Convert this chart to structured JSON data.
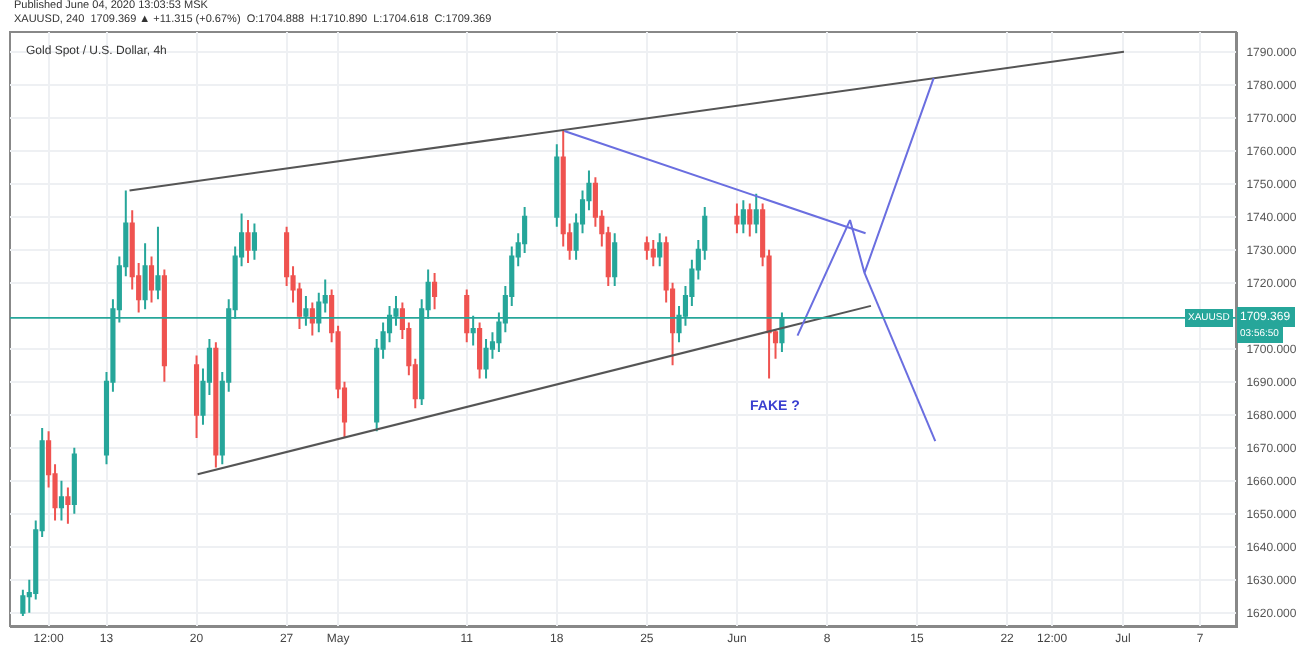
{
  "chart_data": {
    "type": "candlestick",
    "title": "Gold Spot / U.S. Dollar, 4h",
    "annotations": [
      "Published June 04, 2020 13:03:53 MSK",
      "XAUUSD, 240  1709.369 ▲ +11.315 (+0.67%)  O:1704.888  H:1710.890  L:1704.618  C:1709.369",
      "XAUUSD",
      "03:56:50",
      "FAKE ?"
    ],
    "x": [
      "2020-04-06T12:00",
      "2020-04-07T00:00",
      "2020-04-07T12:00",
      "2020-04-08T00:00",
      "2020-04-08T12:00",
      "2020-04-09T00:00",
      "2020-04-09T12:00",
      "2020-04-10T00:00",
      "2020-04-10T12:00",
      "2020-04-13T00:00",
      "2020-04-13T12:00",
      "2020-04-14T00:00",
      "2020-04-14T12:00",
      "2020-04-15T00:00",
      "2020-04-15T12:00",
      "2020-04-16T00:00",
      "2020-04-16T12:00",
      "2020-04-17T00:00",
      "2020-04-17T12:00",
      "2020-04-20T00:00",
      "2020-04-20T12:00",
      "2020-04-21T00:00",
      "2020-04-21T12:00",
      "2020-04-22T00:00",
      "2020-04-22T12:00",
      "2020-04-23T00:00",
      "2020-04-23T12:00",
      "2020-04-24T00:00",
      "2020-04-24T12:00",
      "2020-04-27T00:00",
      "2020-04-27T12:00",
      "2020-04-28T00:00",
      "2020-04-28T12:00",
      "2020-04-29T00:00",
      "2020-04-29T12:00",
      "2020-04-30T00:00",
      "2020-04-30T12:00",
      "2020-05-01T00:00",
      "2020-05-01T12:00",
      "2020-05-04T00:00",
      "2020-05-04T12:00",
      "2020-05-05T00:00",
      "2020-05-05T12:00",
      "2020-05-06T00:00",
      "2020-05-06T12:00",
      "2020-05-07T00:00",
      "2020-05-07T12:00",
      "2020-05-08T00:00",
      "2020-05-08T12:00",
      "2020-05-11T00:00",
      "2020-05-11T12:00",
      "2020-05-12T00:00",
      "2020-05-12T12:00",
      "2020-05-13T00:00",
      "2020-05-13T12:00",
      "2020-05-14T00:00",
      "2020-05-14T12:00",
      "2020-05-15T00:00",
      "2020-05-15T12:00",
      "2020-05-18T00:00",
      "2020-05-18T12:00",
      "2020-05-19T00:00",
      "2020-05-19T12:00",
      "2020-05-20T00:00",
      "2020-05-20T12:00",
      "2020-05-21T00:00",
      "2020-05-21T12:00",
      "2020-05-22T00:00",
      "2020-05-22T12:00",
      "2020-05-25T00:00",
      "2020-05-25T12:00",
      "2020-05-26T00:00",
      "2020-05-26T12:00",
      "2020-05-27T00:00",
      "2020-05-27T12:00",
      "2020-05-28T00:00",
      "2020-05-28T12:00",
      "2020-05-29T00:00",
      "2020-05-29T12:00",
      "2020-06-01T00:00",
      "2020-06-01T12:00",
      "2020-06-02T00:00",
      "2020-06-02T12:00",
      "2020-06-03T00:00",
      "2020-06-03T12:00",
      "2020-06-04T00:00",
      "2020-06-04T12:00"
    ],
    "ohlc": [
      [
        1620,
        1627,
        1619,
        1625
      ],
      [
        1625,
        1630,
        1620,
        1626
      ],
      [
        1626,
        1648,
        1624,
        1645
      ],
      [
        1645,
        1676,
        1643,
        1672
      ],
      [
        1672,
        1675,
        1658,
        1662
      ],
      [
        1662,
        1665,
        1648,
        1652
      ],
      [
        1652,
        1660,
        1648,
        1655
      ],
      [
        1655,
        1658,
        1647,
        1653
      ],
      [
        1653,
        1670,
        1650,
        1668
      ],
      [
        1668,
        1693,
        1665,
        1690
      ],
      [
        1690,
        1715,
        1687,
        1712
      ],
      [
        1712,
        1728,
        1708,
        1725
      ],
      [
        1725,
        1748,
        1722,
        1738
      ],
      [
        1738,
        1742,
        1718,
        1722
      ],
      [
        1722,
        1726,
        1711,
        1715
      ],
      [
        1715,
        1732,
        1712,
        1725
      ],
      [
        1725,
        1728,
        1714,
        1718
      ],
      [
        1718,
        1737,
        1715,
        1722
      ],
      [
        1722,
        1724,
        1690,
        1695
      ],
      [
        1695,
        1698,
        1673,
        1680
      ],
      [
        1680,
        1694,
        1677,
        1690
      ],
      [
        1690,
        1703,
        1686,
        1700
      ],
      [
        1700,
        1702,
        1664,
        1668
      ],
      [
        1668,
        1693,
        1665,
        1690
      ],
      [
        1690,
        1715,
        1687,
        1712
      ],
      [
        1712,
        1731,
        1709,
        1728
      ],
      [
        1728,
        1741,
        1725,
        1735
      ],
      [
        1735,
        1739,
        1726,
        1730
      ],
      [
        1730,
        1738,
        1727,
        1735
      ],
      [
        1735,
        1737,
        1719,
        1722
      ],
      [
        1722,
        1725,
        1714,
        1718
      ],
      [
        1718,
        1720,
        1706,
        1710
      ],
      [
        1710,
        1716,
        1707,
        1712
      ],
      [
        1712,
        1714,
        1704,
        1708
      ],
      [
        1708,
        1717,
        1705,
        1714
      ],
      [
        1714,
        1721,
        1711,
        1716
      ],
      [
        1716,
        1718,
        1702,
        1705
      ],
      [
        1705,
        1707,
        1685,
        1688
      ],
      [
        1688,
        1690,
        1673,
        1678
      ],
      [
        1678,
        1703,
        1675,
        1700
      ],
      [
        1700,
        1708,
        1697,
        1705
      ],
      [
        1705,
        1713,
        1702,
        1710
      ],
      [
        1710,
        1716,
        1707,
        1712
      ],
      [
        1712,
        1714,
        1703,
        1706
      ],
      [
        1706,
        1708,
        1692,
        1695
      ],
      [
        1695,
        1697,
        1682,
        1685
      ],
      [
        1685,
        1715,
        1683,
        1712
      ],
      [
        1712,
        1724,
        1709,
        1720
      ],
      [
        1720,
        1723,
        1712,
        1716
      ],
      [
        1716,
        1718,
        1702,
        1705
      ],
      [
        1705,
        1710,
        1701,
        1706
      ],
      [
        1706,
        1708,
        1691,
        1694
      ],
      [
        1694,
        1703,
        1691,
        1700
      ],
      [
        1700,
        1705,
        1697,
        1702
      ],
      [
        1702,
        1711,
        1699,
        1708
      ],
      [
        1708,
        1719,
        1705,
        1716
      ],
      [
        1716,
        1731,
        1713,
        1728
      ],
      [
        1728,
        1735,
        1725,
        1732
      ],
      [
        1732,
        1743,
        1729,
        1740
      ],
      [
        1740,
        1762,
        1737,
        1758
      ],
      [
        1758,
        1766,
        1731,
        1735
      ],
      [
        1735,
        1738,
        1727,
        1730
      ],
      [
        1730,
        1741,
        1727,
        1738
      ],
      [
        1738,
        1748,
        1735,
        1745
      ],
      [
        1745,
        1754,
        1742,
        1750
      ],
      [
        1750,
        1752,
        1737,
        1740
      ],
      [
        1740,
        1742,
        1731,
        1735
      ],
      [
        1735,
        1737,
        1719,
        1722
      ],
      [
        1722,
        1735,
        1719,
        1732
      ],
      [
        1732,
        1734,
        1727,
        1730
      ],
      [
        1730,
        1733,
        1725,
        1728
      ],
      [
        1728,
        1735,
        1725,
        1732
      ],
      [
        1732,
        1734,
        1714,
        1718
      ],
      [
        1718,
        1720,
        1695,
        1705
      ],
      [
        1705,
        1713,
        1702,
        1710
      ],
      [
        1710,
        1719,
        1707,
        1716
      ],
      [
        1716,
        1727,
        1713,
        1724
      ],
      [
        1724,
        1733,
        1721,
        1730
      ],
      [
        1730,
        1743,
        1727,
        1740
      ],
      [
        1740,
        1744,
        1735,
        1738
      ],
      [
        1738,
        1745,
        1735,
        1742
      ],
      [
        1742,
        1744,
        1734,
        1738
      ],
      [
        1738,
        1747,
        1735,
        1742
      ],
      [
        1742,
        1744,
        1725,
        1728
      ],
      [
        1728,
        1730,
        1691,
        1705
      ],
      [
        1705,
        1706,
        1697,
        1702
      ],
      [
        1702,
        1711,
        1699,
        1709.369
      ]
    ],
    "series": [
      {
        "type": "line",
        "x": [
          "2020-04-14T19:00",
          "2020-07-01T02:00"
        ],
        "values": [
          1748,
          1790
        ],
        "color": "#555555"
      },
      {
        "type": "line",
        "x": [
          "2020-04-20T02:00",
          "2020-06-11T10:00"
        ],
        "values": [
          1662,
          1713
        ],
        "color": "#555555"
      },
      {
        "type": "line",
        "x": [
          "2020-05-18T14:00",
          "2020-06-11T00:00"
        ],
        "values": [
          1766,
          1735
        ],
        "color": "#6a6ee0"
      },
      {
        "type": "line",
        "x": [
          "2020-06-05T17:00",
          "2020-06-09T19:00",
          "2020-06-10T22:00",
          "2020-06-16T07:00"
        ],
        "values": [
          1704,
          1739,
          1723,
          1782
        ],
        "color": "#6a6ee0"
      },
      {
        "type": "line",
        "x": [
          "2020-06-10T22:00",
          "2020-06-16T10:00"
        ],
        "values": [
          1723,
          1672
        ],
        "color": "#6a6ee0"
      }
    ],
    "ref_lines": [
      {
        "axis": "y",
        "value": 1709.369,
        "label": "1709.369",
        "color": "#26a69a"
      }
    ],
    "xlim": [
      "2020-04-05T12:00",
      "2020-07-09T19:00"
    ],
    "xticks": [
      {
        "value": "2020-04-08T12:00",
        "label": "12:00"
      },
      {
        "value": "2020-04-13",
        "label": "13"
      },
      {
        "value": "2020-04-20",
        "label": "20"
      },
      {
        "value": "2020-04-27",
        "label": "27"
      },
      {
        "value": "2020-05-01",
        "label": "May"
      },
      {
        "value": "2020-05-11",
        "label": "11"
      },
      {
        "value": "2020-05-18",
        "label": "18"
      },
      {
        "value": "2020-05-25",
        "label": "25"
      },
      {
        "value": "2020-06-01",
        "label": "Jun"
      },
      {
        "value": "2020-06-08",
        "label": "8"
      },
      {
        "value": "2020-06-15",
        "label": "15"
      },
      {
        "value": "2020-06-22",
        "label": "22"
      },
      {
        "value": "2020-06-25T12:00",
        "label": "12:00"
      },
      {
        "value": "2020-07-01",
        "label": "Jul"
      },
      {
        "value": "2020-07-07",
        "label": "7"
      }
    ],
    "ylim": [
      1616,
      1796
    ],
    "yticks": [
      {
        "value": 1620,
        "label": "1620.000"
      },
      {
        "value": 1630,
        "label": "1630.000"
      },
      {
        "value": 1640,
        "label": "1640.000"
      },
      {
        "value": 1650,
        "label": "1650.000"
      },
      {
        "value": 1660,
        "label": "1660.000"
      },
      {
        "value": 1670,
        "label": "1670.000"
      },
      {
        "value": 1680,
        "label": "1680.000"
      },
      {
        "value": 1690,
        "label": "1690.000"
      },
      {
        "value": 1700,
        "label": "1700.000"
      },
      {
        "value": 1720,
        "label": "1720.000"
      },
      {
        "value": 1730,
        "label": "1730.000"
      },
      {
        "value": 1740,
        "label": "1740.000"
      },
      {
        "value": 1750,
        "label": "1750.000"
      },
      {
        "value": 1760,
        "label": "1760.000"
      },
      {
        "value": 1770,
        "label": "1770.000"
      },
      {
        "value": 1780,
        "label": "1780.000"
      },
      {
        "value": 1790,
        "label": "1790.000"
      }
    ],
    "grid": true
  }
}
